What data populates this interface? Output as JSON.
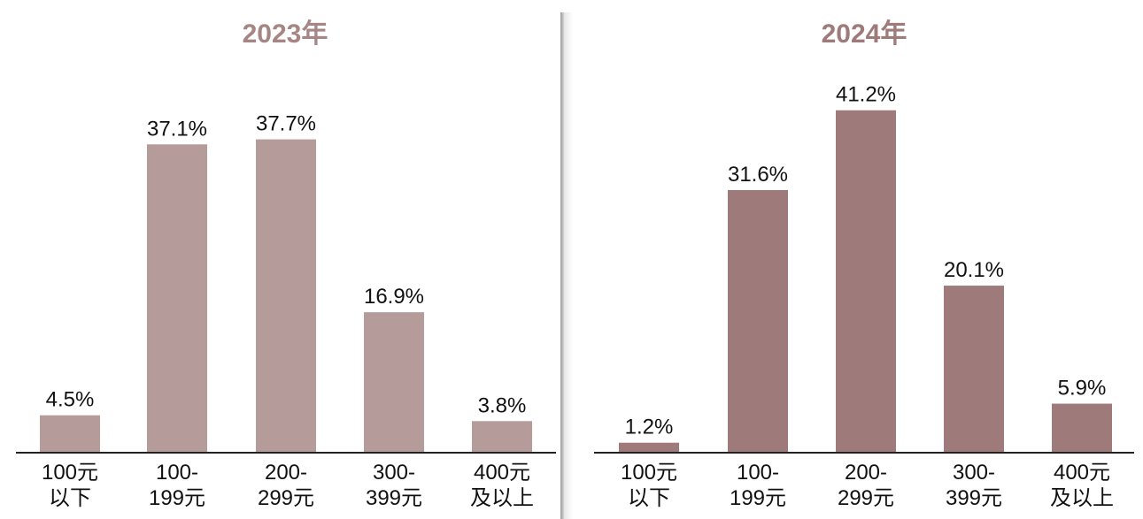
{
  "chart_data": [
    {
      "type": "bar",
      "title": "2023年",
      "categories": [
        [
          "100元",
          "以下"
        ],
        [
          "100-",
          "199元"
        ],
        [
          "200-",
          "299元"
        ],
        [
          "300-",
          "399元"
        ],
        [
          "400元",
          "及以上"
        ]
      ],
      "values": [
        4.5,
        37.1,
        37.7,
        16.9,
        3.8
      ],
      "value_labels": [
        "4.5%",
        "37.1%",
        "37.7%",
        "16.9%",
        "3.8%"
      ],
      "ylim": [
        0,
        45
      ],
      "grid": false,
      "legend": "none",
      "bar_color": "#b59b9a",
      "title_color": "#a68684"
    },
    {
      "type": "bar",
      "title": "2024年",
      "categories": [
        [
          "100元",
          "以下"
        ],
        [
          "100-",
          "199元"
        ],
        [
          "200-",
          "299元"
        ],
        [
          "300-",
          "399元"
        ],
        [
          "400元",
          "及以上"
        ]
      ],
      "values": [
        1.2,
        31.6,
        41.2,
        20.1,
        5.9
      ],
      "value_labels": [
        "1.2%",
        "31.6%",
        "41.2%",
        "20.1%",
        "5.9%"
      ],
      "ylim": [
        0,
        45
      ],
      "grid": false,
      "legend": "none",
      "bar_color": "#9e7b7a",
      "title_color": "#9e7b7a"
    }
  ]
}
